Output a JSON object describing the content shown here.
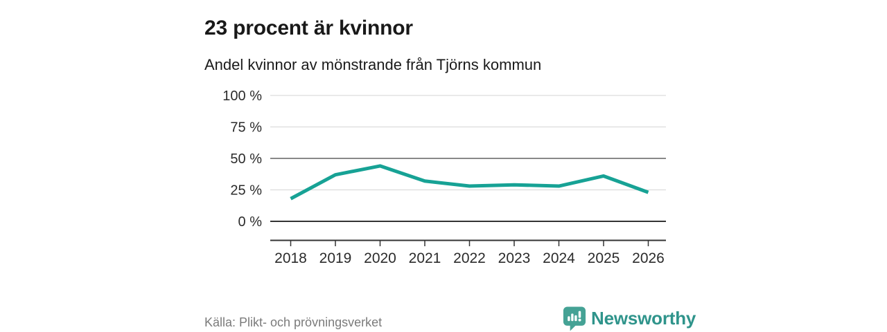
{
  "header": {
    "title": "23 procent är kvinnor",
    "subtitle": "Andel kvinnor av mönstrande från Tjörns kommun"
  },
  "chart_data": {
    "type": "line",
    "title": "23 procent är kvinnor",
    "subtitle": "Andel kvinnor av mönstrande från Tjörns kommun",
    "categories": [
      "2018",
      "2019",
      "2020",
      "2021",
      "2022",
      "2023",
      "2024",
      "2025",
      "2026"
    ],
    "series": [
      {
        "name": "Andel kvinnor av mönstrande",
        "values": [
          18,
          37,
          44,
          32,
          28,
          29,
          28,
          36,
          23
        ]
      }
    ],
    "unit": "%",
    "ylim": [
      0,
      100
    ],
    "yticks": [
      {
        "value": 100,
        "label": "100 %"
      },
      {
        "value": 75,
        "label": "75 %"
      },
      {
        "value": 50,
        "label": "50 %"
      },
      {
        "value": 25,
        "label": "25 %"
      },
      {
        "value": 0,
        "label": "0 %"
      }
    ],
    "grid": "horizontal",
    "legend": "none",
    "line_color": "#17A295",
    "grid_color_light": "#DCDCDC",
    "grid_color_mid": "#606060",
    "axis_color": "#333333",
    "tick_label_color": "#2B2B2B"
  },
  "footer": {
    "source": "Källa: Plikt- och prövningsverket",
    "brand": "Newsworthy",
    "brand_color": "#2F948B",
    "brand_icon": "newsworthy-bubble-chart-icon",
    "brand_icon_color": "#45A295"
  }
}
